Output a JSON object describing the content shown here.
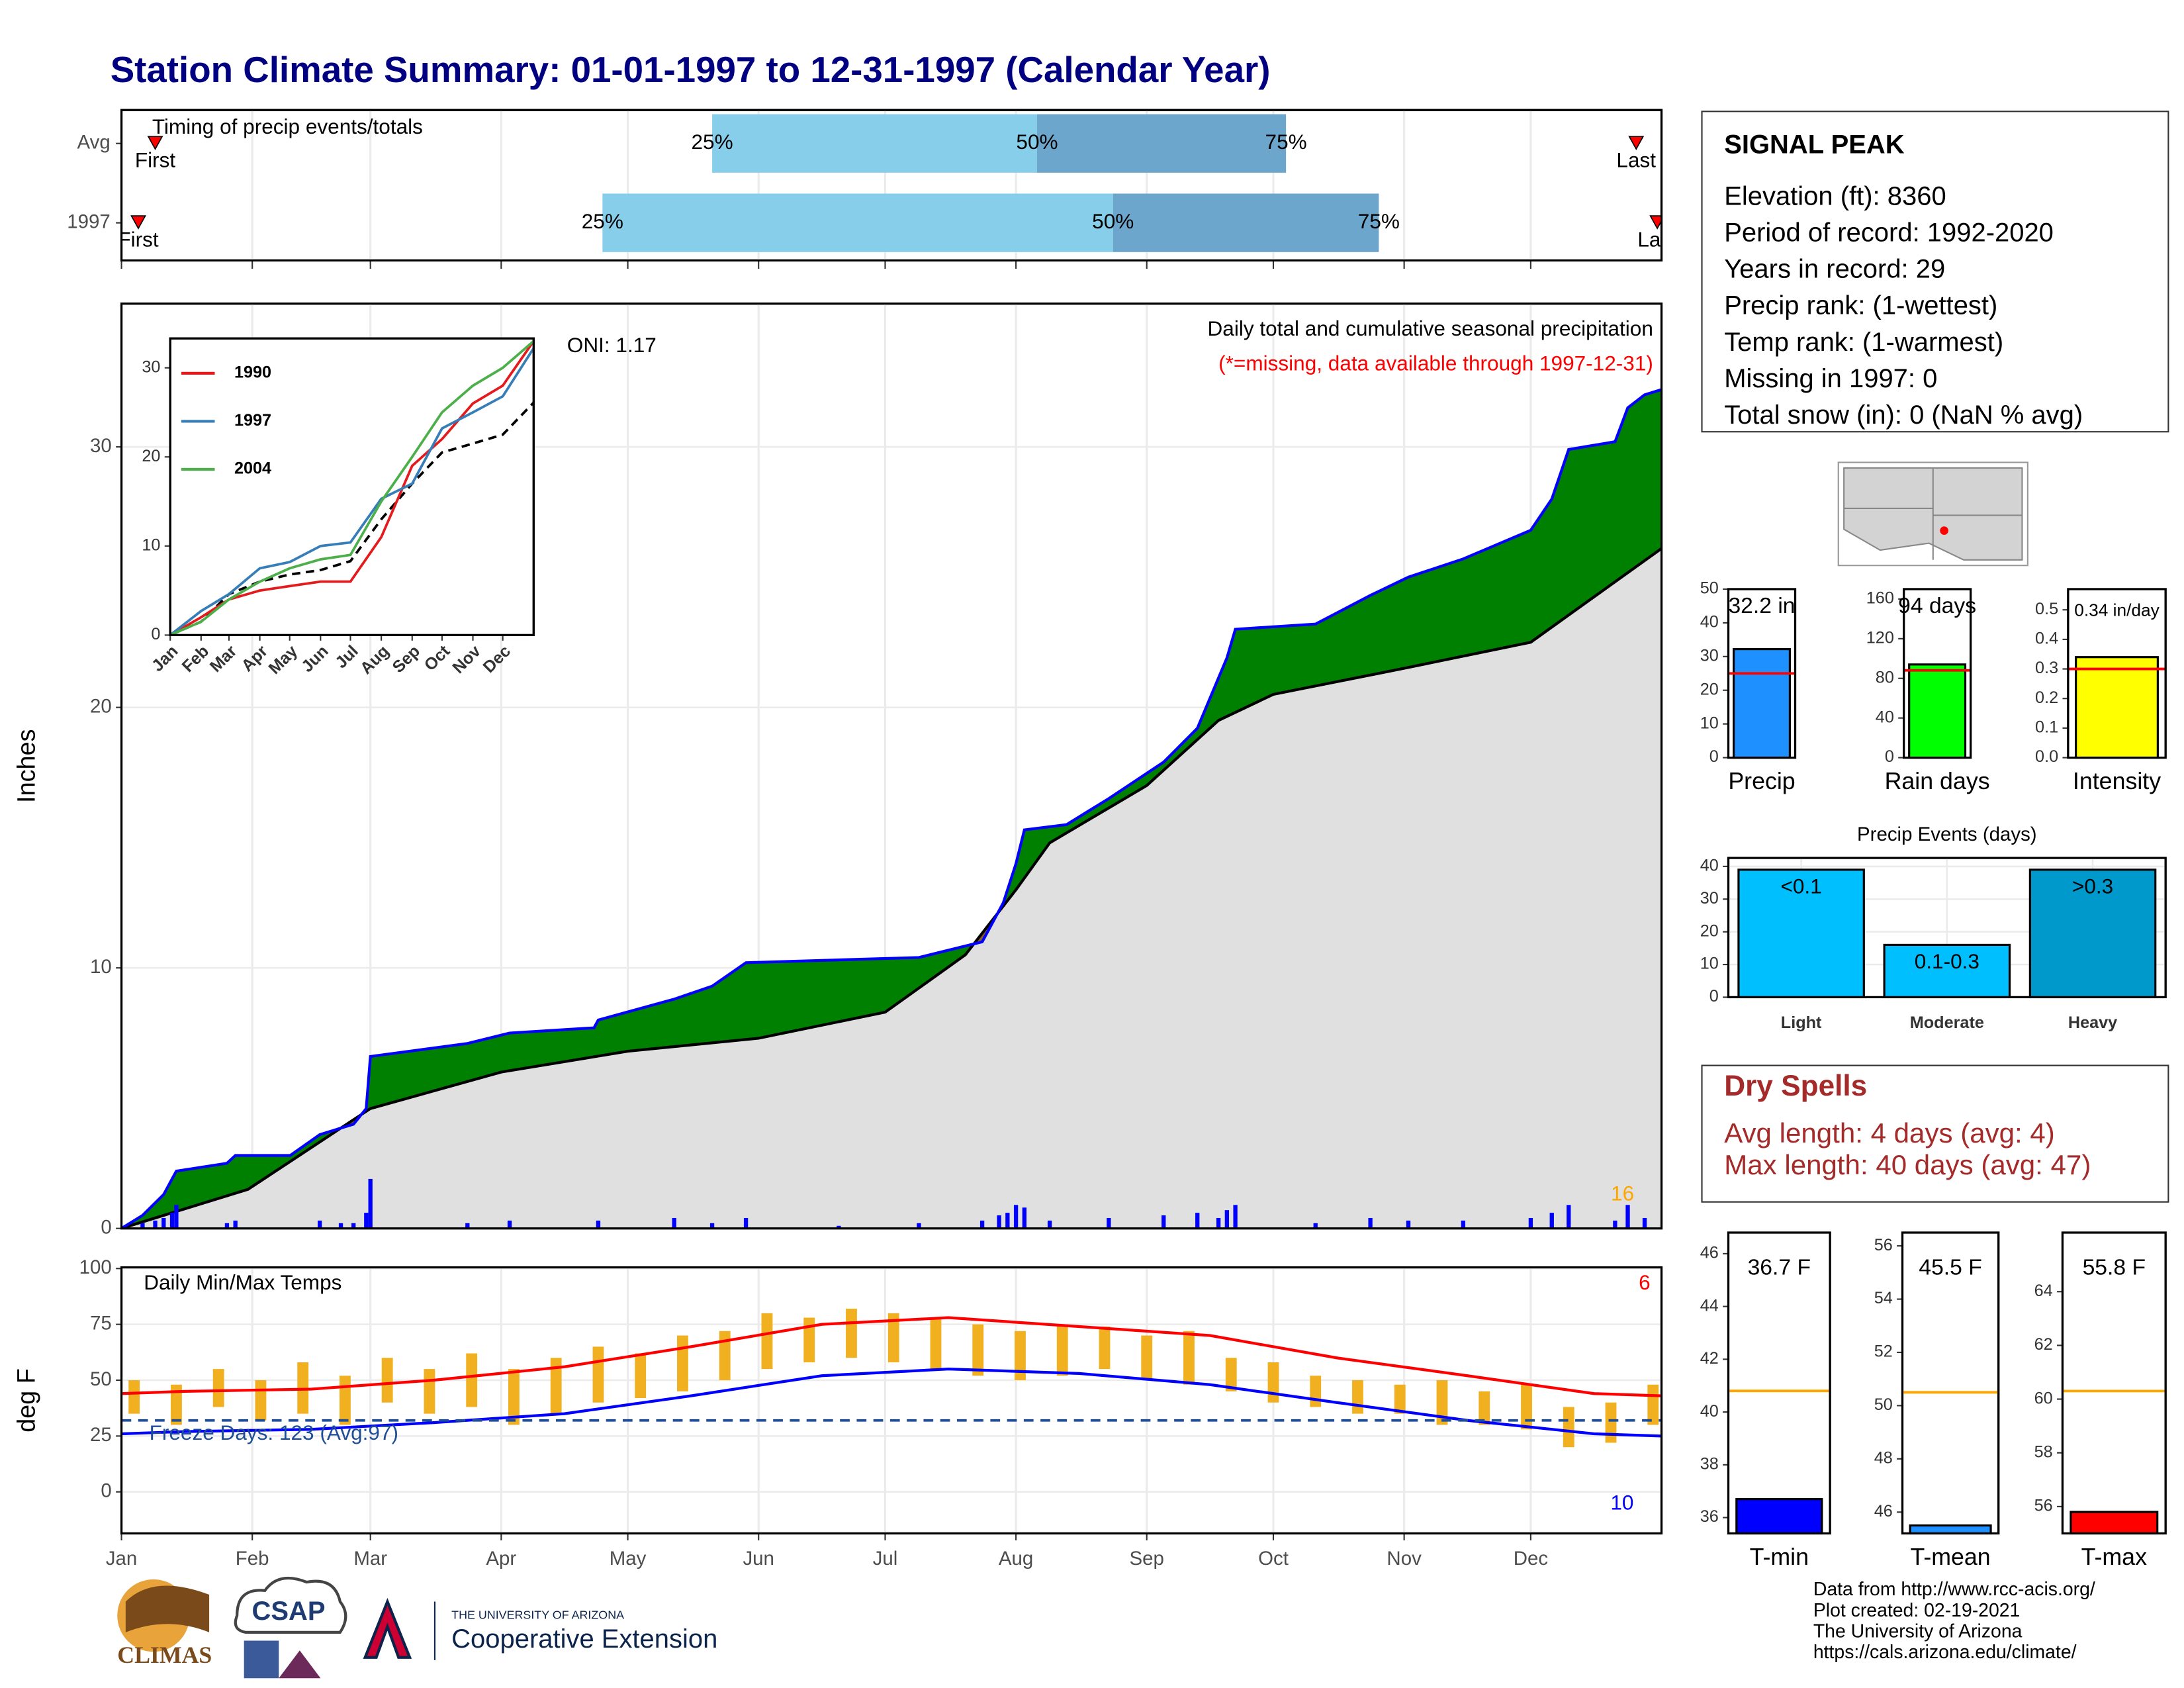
{
  "title": "Station Climate Summary: 01-01-1997 to 12-31-1997 (Calendar Year)",
  "station": {
    "name": "SIGNAL PEAK",
    "lines": [
      "Elevation (ft): 8360",
      "Period of record: 1992-2020",
      "Years in record: 29",
      "Precip rank:  (1-wettest)",
      "Temp rank:  (1-warmest)",
      "Missing in 1997: 0",
      "Total snow (in): 0 (NaN % avg)"
    ]
  },
  "dry_spells": {
    "title": "Dry Spells",
    "lines": [
      "Avg length: 4 days (avg: 4)",
      "Max length: 40 days (avg: 47)"
    ]
  },
  "logos": [
    "CLIMAS",
    "CSAP",
    "THE UNIVERSITY OF ARIZONA",
    "Cooperative Extension"
  ],
  "footer": [
    "Data from http://www.rcc-acis.org/",
    "Plot created: 02-19-2021",
    "The University of Arizona",
    "https://cals.arizona.edu/climate/"
  ],
  "chart_data": [
    {
      "type": "timing",
      "title": "Timing of precip events/totals",
      "categories": [
        "Avg",
        "1997"
      ],
      "xlim": [
        0,
        365
      ],
      "first": [
        8,
        4
      ],
      "first_label": "First",
      "last": [
        359,
        364
      ],
      "last_label": "Last",
      "quartiles": [
        [
          140,
          217,
          276
        ],
        [
          114,
          235,
          298
        ]
      ],
      "quartile_labels": [
        "25%",
        "50%",
        "75%"
      ],
      "colors": [
        "#87ceeb",
        "#6ca6cd"
      ],
      "marker_color": "#ff0000"
    },
    {
      "type": "cumulative",
      "title": "Daily total and cumulative seasonal precipitation",
      "subtitle": "(*=missing, data available through 1997-12-31)",
      "annotations": [
        "ONI: 1.17",
        "16"
      ],
      "ylabel": "Inches",
      "xlim": [
        0,
        365
      ],
      "ylim": [
        0,
        35.5
      ],
      "yticks": [
        0,
        10,
        20,
        30
      ],
      "grid": true,
      "series": [
        {
          "color": "#0000ff",
          "x": [
            0,
            5,
            10,
            13,
            25,
            27,
            40,
            47,
            55,
            58,
            59,
            82,
            92,
            112,
            113,
            131,
            140,
            148,
            189,
            204,
            209,
            212,
            214,
            224,
            234,
            247,
            255,
            262,
            264,
            283,
            296,
            305,
            318,
            334,
            339,
            343,
            354,
            357,
            361,
            365
          ],
          "values": [
            0,
            0.5,
            1.3,
            2.2,
            2.5,
            2.8,
            2.8,
            3.6,
            4.0,
            4.6,
            6.6,
            7.1,
            7.5,
            7.7,
            8.0,
            8.8,
            9.3,
            10.2,
            10.4,
            11.0,
            12.5,
            14.0,
            15.3,
            15.5,
            16.5,
            17.9,
            19.2,
            21.9,
            23.0,
            23.2,
            24.3,
            25.0,
            25.7,
            26.8,
            28.0,
            29.9,
            30.2,
            31.5,
            32.0,
            32.2
          ]
        },
        {
          "color": "#000000",
          "x": [
            0,
            30,
            59,
            90,
            120,
            151,
            181,
            200,
            212,
            220,
            243,
            260,
            273,
            304,
            334,
            365
          ],
          "values": [
            0,
            1.5,
            4.6,
            6.0,
            6.8,
            7.3,
            8.3,
            10.5,
            13.0,
            14.8,
            17.0,
            19.5,
            20.5,
            21.5,
            22.5,
            26.1
          ]
        }
      ],
      "fill_above": "#008000",
      "fill_below": "#8b5a2b",
      "fill_avg": "#e0e0e0",
      "annotation_color": "#ffa500",
      "subtitle_color": "#ff0000",
      "daily": {
        "color": "#0000ff",
        "x": [
          5,
          8,
          10,
          12,
          13,
          25,
          27,
          47,
          52,
          55,
          58,
          59,
          82,
          92,
          113,
          131,
          140,
          148,
          170,
          189,
          204,
          208,
          210,
          212,
          214,
          220,
          234,
          247,
          255,
          260,
          262,
          264,
          283,
          296,
          305,
          318,
          334,
          339,
          343,
          354,
          357,
          361
        ],
        "values": [
          0.2,
          0.3,
          0.4,
          0.6,
          0.9,
          0.2,
          0.3,
          0.3,
          0.2,
          0.2,
          0.6,
          1.9,
          0.2,
          0.3,
          0.3,
          0.4,
          0.2,
          0.4,
          0.1,
          0.2,
          0.3,
          0.5,
          0.6,
          0.9,
          0.8,
          0.3,
          0.4,
          0.5,
          0.6,
          0.4,
          0.7,
          0.9,
          0.2,
          0.4,
          0.3,
          0.3,
          0.4,
          0.6,
          0.9,
          0.3,
          0.9,
          0.4
        ]
      }
    },
    {
      "type": "line",
      "xlim": [
        0,
        365
      ],
      "ylim": [
        0,
        33.3
      ],
      "yticks": [
        0,
        10,
        20,
        30
      ],
      "xticks": [
        {
          "value": 0,
          "label": "Jan"
        },
        {
          "value": 31,
          "label": "Feb"
        },
        {
          "value": 59,
          "label": "Mar"
        },
        {
          "value": 90,
          "label": "Apr"
        },
        {
          "value": 120,
          "label": "May"
        },
        {
          "value": 151,
          "label": "Jun"
        },
        {
          "value": 181,
          "label": "Jul"
        },
        {
          "value": 212,
          "label": "Aug"
        },
        {
          "value": 243,
          "label": "Sep"
        },
        {
          "value": 273,
          "label": "Oct"
        },
        {
          "value": 304,
          "label": "Nov"
        },
        {
          "value": 334,
          "label": "Dec"
        }
      ],
      "series": [
        {
          "name": "1990",
          "color": "#e41a1c",
          "x": [
            0,
            31,
            59,
            90,
            120,
            151,
            181,
            212,
            243,
            273,
            304,
            334,
            365
          ],
          "values": [
            0,
            2,
            4,
            5,
            5.5,
            6,
            6,
            11,
            19,
            22,
            26,
            28,
            33
          ]
        },
        {
          "name": "1997",
          "color": "#377eb8",
          "x": [
            0,
            31,
            59,
            90,
            120,
            151,
            181,
            212,
            243,
            273,
            304,
            334,
            365
          ],
          "values": [
            0,
            2.7,
            4.6,
            7.5,
            8.2,
            10.0,
            10.4,
            15.3,
            17.0,
            23.2,
            25.0,
            26.8,
            32.2
          ]
        },
        {
          "name": "2004",
          "color": "#4daf4a",
          "x": [
            0,
            31,
            59,
            90,
            120,
            151,
            181,
            212,
            243,
            273,
            304,
            334,
            365
          ],
          "values": [
            0,
            1.5,
            4,
            6,
            7.5,
            8.5,
            9,
            15,
            20,
            25,
            28,
            30,
            33
          ]
        }
      ],
      "average": {
        "color": "#000000",
        "x": [
          0,
          31,
          59,
          90,
          120,
          151,
          181,
          212,
          243,
          273,
          304,
          334,
          365
        ],
        "values": [
          0,
          1.5,
          4.6,
          6.0,
          6.8,
          7.3,
          8.3,
          13,
          17,
          20.5,
          21.5,
          22.5,
          26.1
        ]
      }
    },
    {
      "type": "temperature",
      "title": "Daily Min/Max Temps",
      "ylabel": "deg F",
      "xlim": [
        0,
        365
      ],
      "ylim": [
        -18.6,
        100.5
      ],
      "yticks": [
        0,
        25,
        50,
        75,
        100
      ],
      "grid": true,
      "xticks": [
        {
          "value": 0,
          "label": "Jan"
        },
        {
          "value": 31,
          "label": "Feb"
        },
        {
          "value": 59,
          "label": "Mar"
        },
        {
          "value": 90,
          "label": "Apr"
        },
        {
          "value": 120,
          "label": "May"
        },
        {
          "value": 151,
          "label": "Jun"
        },
        {
          "value": 181,
          "label": "Jul"
        },
        {
          "value": 212,
          "label": "Aug"
        },
        {
          "value": 243,
          "label": "Sep"
        },
        {
          "value": 273,
          "label": "Oct"
        },
        {
          "value": 304,
          "label": "Nov"
        },
        {
          "value": 334,
          "label": "Dec"
        }
      ],
      "freeze": {
        "value": 32,
        "label": "Freeze Days: 123 (Avg:97)",
        "color": "#1f4e99"
      },
      "annotations": [
        {
          "text": "6",
          "color": "#ff0000"
        },
        {
          "text": "10",
          "color": "#0000ff"
        }
      ],
      "series": [
        {
          "color": "#ff0000",
          "x": [
            0,
            15,
            45,
            74,
            105,
            135,
            166,
            196,
            227,
            258,
            288,
            319,
            349,
            365
          ],
          "values": [
            44,
            45,
            46,
            50,
            56,
            65,
            75,
            78,
            74,
            70,
            60,
            52,
            44,
            43
          ]
        },
        {
          "color": "#0000ff",
          "x": [
            0,
            15,
            45,
            74,
            105,
            135,
            166,
            196,
            227,
            258,
            288,
            319,
            349,
            365
          ],
          "values": [
            26,
            27,
            28,
            31,
            35,
            43,
            52,
            55,
            53,
            48,
            40,
            32,
            26,
            25
          ]
        }
      ],
      "daily": {
        "color": "#f0b020",
        "x": [
          3,
          13,
          23,
          33,
          43,
          53,
          63,
          73,
          83,
          93,
          103,
          113,
          123,
          133,
          143,
          153,
          163,
          173,
          183,
          193,
          203,
          213,
          223,
          233,
          243,
          253,
          263,
          273,
          283,
          293,
          303,
          313,
          323,
          333,
          343,
          353,
          363
        ],
        "low": [
          35,
          30,
          38,
          32,
          35,
          30,
          40,
          35,
          38,
          30,
          35,
          40,
          42,
          45,
          50,
          55,
          58,
          60,
          58,
          55,
          52,
          50,
          52,
          55,
          50,
          48,
          45,
          40,
          38,
          35,
          35,
          30,
          30,
          28,
          20,
          22,
          30
        ],
        "high": [
          50,
          48,
          55,
          50,
          58,
          52,
          60,
          55,
          62,
          55,
          60,
          65,
          62,
          70,
          72,
          80,
          78,
          82,
          80,
          78,
          75,
          72,
          75,
          74,
          70,
          72,
          60,
          58,
          52,
          50,
          48,
          50,
          45,
          48,
          38,
          40,
          48
        ]
      }
    },
    {
      "type": "bar",
      "categories": [
        "Precip"
      ],
      "values": [
        32.2
      ],
      "value_labels": [
        "32.2 in"
      ],
      "color": "#1e90ff",
      "average": 25,
      "average_color": "#ff0000",
      "ylim": [
        0,
        50
      ],
      "yticks": [
        0,
        10,
        20,
        30,
        40,
        50
      ]
    },
    {
      "type": "bar",
      "categories": [
        "Rain days"
      ],
      "values": [
        94
      ],
      "value_labels": [
        "94 days"
      ],
      "color": "#00ff00",
      "average": 88,
      "average_color": "#ff0000",
      "ylim": [
        0,
        170
      ],
      "yticks": [
        0,
        40,
        80,
        120,
        160
      ]
    },
    {
      "type": "bar",
      "categories": [
        "Intensity"
      ],
      "values": [
        0.34
      ],
      "value_labels": [
        "0.34 in/day"
      ],
      "color": "#ffff00",
      "average": 0.3,
      "average_color": "#ff0000",
      "ylim": [
        0,
        0.57
      ],
      "yticks": [
        {
          "value": 0,
          "label": "0.0"
        },
        0.1,
        0.2,
        0.3,
        0.4,
        0.5
      ]
    },
    {
      "type": "bar",
      "title": "Precip Events (days)",
      "categories": [
        "Light",
        "Moderate",
        "Heavy"
      ],
      "ranges": [
        "<0.1",
        "0.1-0.3",
        ">0.3"
      ],
      "values": [
        39,
        16,
        39
      ],
      "colors": [
        "#00bfff",
        "#00bfff",
        "#0099cc"
      ],
      "ylim": [
        0,
        42.6
      ],
      "yticks": [
        0,
        10,
        20,
        30,
        40
      ],
      "grid": true
    },
    {
      "type": "bar",
      "categories": [
        "T-min"
      ],
      "values": [
        36.7
      ],
      "value_labels": [
        "36.7 F"
      ],
      "color": "#0000ff",
      "average": 40.8,
      "average_color": "#ffa500",
      "ylim": [
        35.4,
        46.8
      ],
      "yticks": [
        36,
        38,
        40,
        42,
        44,
        46
      ]
    },
    {
      "type": "bar",
      "categories": [
        "T-mean"
      ],
      "values": [
        45.5
      ],
      "value_labels": [
        "45.5 F"
      ],
      "color": "#1e90ff",
      "average": 50.5,
      "average_color": "#ffa500",
      "ylim": [
        45.2,
        56.5
      ],
      "yticks": [
        46,
        48,
        50,
        52,
        54,
        56
      ]
    },
    {
      "type": "bar",
      "categories": [
        "T-max"
      ],
      "values": [
        55.8
      ],
      "value_labels": [
        "55.8 F"
      ],
      "color": "#ff0000",
      "average": 60.3,
      "average_color": "#ffa500",
      "ylim": [
        55.0,
        66.2
      ],
      "yticks": [
        56,
        58,
        60,
        62,
        64
      ]
    }
  ]
}
